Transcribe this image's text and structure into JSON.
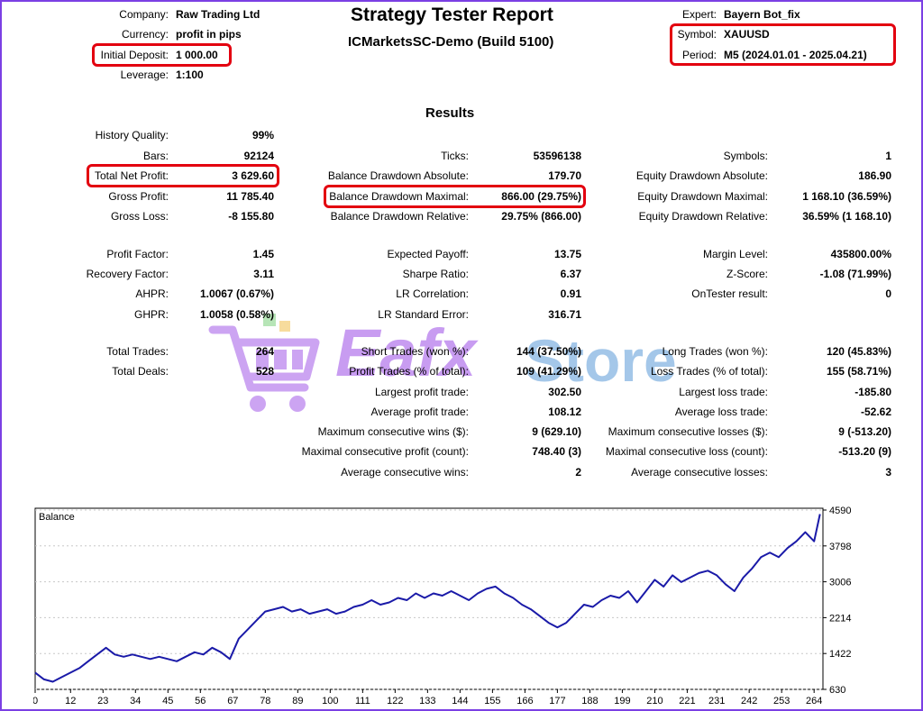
{
  "header": {
    "title": "Strategy Tester Report",
    "subtitle": "ICMarketsSC-Demo (Build 5100)",
    "left": [
      {
        "label": "Company:",
        "value": "Raw Trading Ltd"
      },
      {
        "label": "Currency:",
        "value": "profit in pips"
      },
      {
        "label": "Initial Deposit:",
        "value": "1 000.00"
      },
      {
        "label": "Leverage:",
        "value": "1:100"
      }
    ],
    "right": [
      {
        "label": "Expert:",
        "value": "Bayern Bot_fix"
      },
      {
        "label": "Symbol:",
        "value": "XAUUSD"
      },
      {
        "label": "Period:",
        "value": "M5 (2024.01.01 - 2025.04.21)"
      }
    ]
  },
  "results_heading": "Results",
  "col1": [
    {
      "label": "History Quality:",
      "value": "99%"
    },
    {
      "label": "Bars:",
      "value": "92124"
    },
    {
      "label": "Total Net Profit:",
      "value": "3 629.60"
    },
    {
      "label": "Gross Profit:",
      "value": "11 785.40"
    },
    {
      "label": "Gross Loss:",
      "value": "-8 155.80"
    },
    {
      "label": "Profit Factor:",
      "value": "1.45"
    },
    {
      "label": "Recovery Factor:",
      "value": "3.11"
    },
    {
      "label": "AHPR:",
      "value": "1.0067 (0.67%)"
    },
    {
      "label": "GHPR:",
      "value": "1.0058 (0.58%)"
    },
    {
      "label": "Total Trades:",
      "value": "264"
    },
    {
      "label": "Total Deals:",
      "value": "528"
    }
  ],
  "col2": [
    {
      "label": "Ticks:",
      "value": "53596138"
    },
    {
      "label": "Balance Drawdown Absolute:",
      "value": "179.70"
    },
    {
      "label": "Balance Drawdown Maximal:",
      "value": "866.00 (29.75%)"
    },
    {
      "label": "Balance Drawdown Relative:",
      "value": "29.75% (866.00)"
    },
    {
      "label": "Expected Payoff:",
      "value": "13.75"
    },
    {
      "label": "Sharpe Ratio:",
      "value": "6.37"
    },
    {
      "label": "LR Correlation:",
      "value": "0.91"
    },
    {
      "label": "LR Standard Error:",
      "value": "316.71"
    },
    {
      "label": "Short Trades (won %):",
      "value": "144 (37.50%)"
    },
    {
      "label": "Profit Trades (% of total):",
      "value": "109 (41.29%)"
    },
    {
      "label": "Largest profit trade:",
      "value": "302.50"
    },
    {
      "label": "Average profit trade:",
      "value": "108.12"
    },
    {
      "label": "Maximum consecutive wins ($):",
      "value": "9 (629.10)"
    },
    {
      "label": "Maximal consecutive profit (count):",
      "value": "748.40 (3)"
    },
    {
      "label": "Average consecutive wins:",
      "value": "2"
    }
  ],
  "col3": [
    {
      "label": "Symbols:",
      "value": "1"
    },
    {
      "label": "Equity Drawdown Absolute:",
      "value": "186.90"
    },
    {
      "label": "Equity Drawdown Maximal:",
      "value": "1 168.10 (36.59%)"
    },
    {
      "label": "Equity Drawdown Relative:",
      "value": "36.59% (1 168.10)"
    },
    {
      "label": "Margin Level:",
      "value": "435800.00%"
    },
    {
      "label": "Z-Score:",
      "value": "-1.08 (71.99%)"
    },
    {
      "label": "OnTester result:",
      "value": "0"
    },
    {
      "label": "Long Trades (won %):",
      "value": "120 (45.83%)"
    },
    {
      "label": "Loss Trades (% of total):",
      "value": "155 (58.71%)"
    },
    {
      "label": "Largest loss trade:",
      "value": "-185.80"
    },
    {
      "label": "Average loss trade:",
      "value": "-52.62"
    },
    {
      "label": "Maximum consecutive losses ($):",
      "value": "9 (-513.20)"
    },
    {
      "label": "Maximal consecutive loss (count):",
      "value": "-513.20 (9)"
    },
    {
      "label": "Average consecutive losses:",
      "value": "3"
    }
  ],
  "watermark": {
    "word1": "Eafx",
    "word2": "Store"
  },
  "colors": {
    "highlight": "#e3000f",
    "frame": "#7b3fe4",
    "line": "#1a1aa8",
    "watermark": "#a45be8",
    "watermark2": "#5b9bd8"
  },
  "chart_data": {
    "type": "line",
    "title": "Balance",
    "xlabel": "",
    "ylabel": "",
    "x_ticks": [
      0,
      12,
      23,
      34,
      45,
      56,
      67,
      78,
      89,
      100,
      111,
      122,
      133,
      144,
      155,
      166,
      177,
      188,
      199,
      210,
      221,
      231,
      242,
      253,
      264
    ],
    "y_ticks": [
      630,
      1422,
      2214,
      3006,
      3798,
      4590
    ],
    "xlim": [
      0,
      267
    ],
    "ylim": [
      630,
      4630
    ],
    "series": [
      {
        "x": [
          0,
          3,
          6,
          9,
          12,
          15,
          18,
          21,
          24,
          27,
          30,
          33,
          36,
          39,
          42,
          45,
          48,
          51,
          54,
          57,
          60,
          63,
          66,
          69,
          72,
          75,
          78,
          81,
          84,
          87,
          90,
          93,
          96,
          99,
          102,
          105,
          108,
          111,
          114,
          117,
          120,
          123,
          126,
          129,
          132,
          135,
          138,
          141,
          144,
          147,
          150,
          153,
          156,
          159,
          162,
          165,
          168,
          171,
          174,
          177,
          180,
          183,
          186,
          189,
          192,
          195,
          198,
          201,
          204,
          207,
          210,
          213,
          216,
          219,
          222,
          225,
          228,
          231,
          234,
          237,
          240,
          243,
          246,
          249,
          252,
          255,
          258,
          261,
          264,
          266
        ],
        "values": [
          1000,
          850,
          800,
          900,
          1000,
          1100,
          1250,
          1400,
          1550,
          1400,
          1350,
          1400,
          1350,
          1300,
          1350,
          1300,
          1250,
          1350,
          1450,
          1400,
          1550,
          1450,
          1300,
          1750,
          1950,
          2150,
          2350,
          2400,
          2450,
          2350,
          2400,
          2300,
          2350,
          2400,
          2300,
          2350,
          2450,
          2500,
          2600,
          2500,
          2550,
          2650,
          2600,
          2750,
          2650,
          2750,
          2700,
          2800,
          2700,
          2600,
          2750,
          2850,
          2900,
          2750,
          2650,
          2500,
          2400,
          2250,
          2100,
          2000,
          2100,
          2300,
          2500,
          2450,
          2600,
          2700,
          2650,
          2800,
          2550,
          2800,
          3050,
          2900,
          3150,
          3000,
          3100,
          3200,
          3250,
          3150,
          2950,
          2800,
          3100,
          3300,
          3550,
          3650,
          3550,
          3750,
          3900,
          4100,
          3900,
          4500
        ]
      }
    ]
  }
}
